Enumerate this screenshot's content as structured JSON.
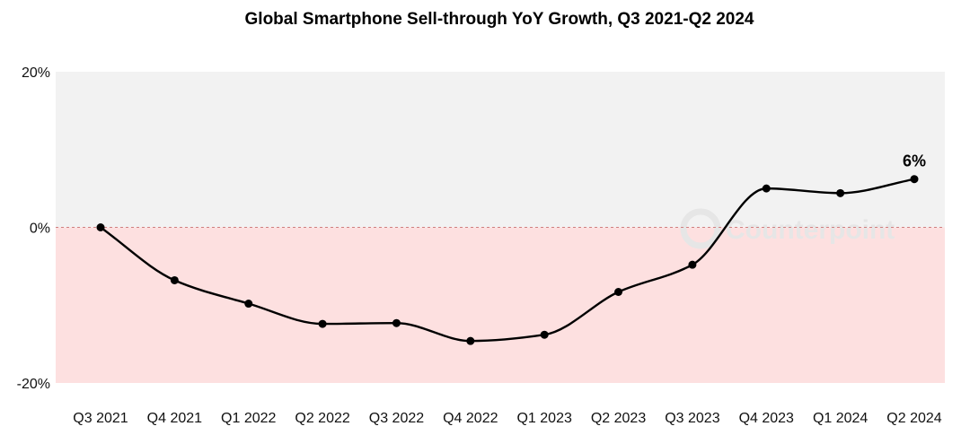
{
  "chart_data": {
    "type": "line",
    "title": "Global Smartphone Sell-through YoY Growth, Q3 2021-Q2 2024",
    "xlabel": "",
    "ylabel": "",
    "categories": [
      "Q3 2021",
      "Q4 2021",
      "Q1 2022",
      "Q2 2022",
      "Q3 2022",
      "Q4 2022",
      "Q1 2023",
      "Q2 2023",
      "Q3 2023",
      "Q4 2023",
      "Q1 2024",
      "Q2 2024"
    ],
    "series": [
      {
        "values": [
          0,
          -6.8,
          -9.8,
          -12.4,
          -12.3,
          -14.6,
          -13.8,
          -8.3,
          -4.8,
          5.0,
          4.4,
          6.2
        ]
      }
    ],
    "ylim": [
      -20,
      20
    ],
    "yticks": [
      20,
      0,
      -20
    ],
    "ytick_labels": [
      "20%",
      "0%",
      "-20%"
    ],
    "data_labels": [
      {
        "index": 11,
        "text": "6%"
      }
    ],
    "grid": false,
    "legend": "none",
    "zero_line": "dashed",
    "colors": {
      "positive_region": "#f2f2f2",
      "negative_region": "#fde0e0",
      "line": "#000000",
      "marker": "#000000",
      "zero_line": "#d08080"
    },
    "watermark": "Counterpoint"
  }
}
